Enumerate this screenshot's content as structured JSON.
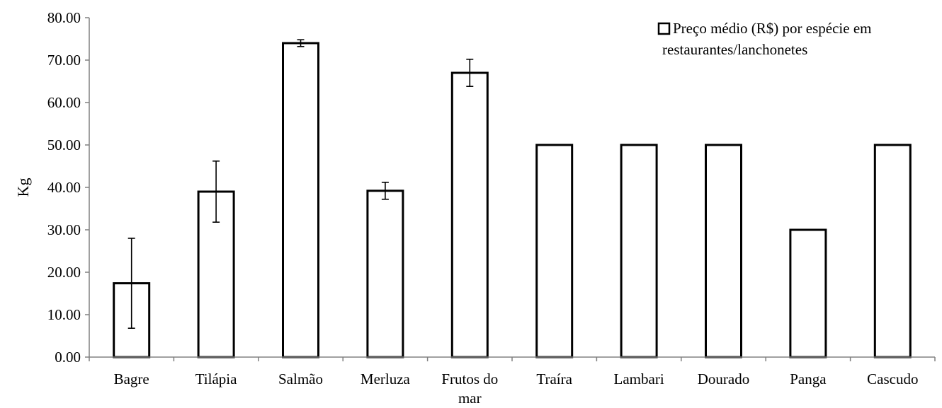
{
  "chart_data": {
    "type": "bar",
    "categories": [
      "Bagre",
      "Tilápia",
      "Salmão",
      "Merluza",
      "Frutos do mar",
      "Traíra",
      "Lambari",
      "Dourado",
      "Panga",
      "Cascudo"
    ],
    "category_lines": [
      [
        "Bagre"
      ],
      [
        "Tilápia"
      ],
      [
        "Salmão"
      ],
      [
        "Merluza"
      ],
      [
        "Frutos do",
        "mar"
      ],
      [
        "Traíra"
      ],
      [
        "Lambari"
      ],
      [
        "Dourado"
      ],
      [
        "Panga"
      ],
      [
        "Cascudo"
      ]
    ],
    "series": [
      {
        "name": "Preço médio (R$) por espécie em restaurantes/lanchonetes",
        "name_lines": [
          "Preço médio (R$) por espécie em",
          "restaurantes/lanchonetes"
        ],
        "values": [
          17.4,
          39.0,
          74.0,
          39.2,
          67.0,
          50.0,
          50.0,
          50.0,
          30.0,
          50.0
        ],
        "error": [
          10.6,
          7.2,
          0.8,
          2.0,
          3.2,
          null,
          null,
          null,
          null,
          null
        ]
      }
    ],
    "ylabel": "Kg",
    "xlabel": "",
    "ylim": [
      0,
      80
    ],
    "yticks": [
      "0.00",
      "10.00",
      "20.00",
      "30.00",
      "40.00",
      "50.00",
      "60.00",
      "70.00",
      "80.00"
    ],
    "grid": false,
    "legend_position": "top-right",
    "colors": {
      "bar_fill": "#ffffff",
      "bar_stroke": "#000000",
      "axis": "#808080"
    }
  }
}
